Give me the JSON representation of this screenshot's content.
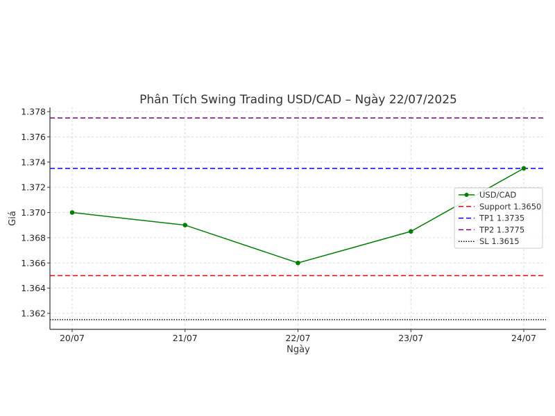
{
  "chart_data": {
    "type": "line",
    "title": "Phân Tích Swing Trading USD/CAD – Ngày 22/07/2025",
    "xlabel": "Ngày",
    "ylabel": "Giá",
    "categories": [
      "20/07",
      "21/07",
      "22/07",
      "23/07",
      "24/07"
    ],
    "series": [
      {
        "name": "USD/CAD",
        "values": [
          1.37,
          1.369,
          1.366,
          1.3685,
          1.3735
        ],
        "color": "#008000",
        "style": "solid",
        "marker": "circle"
      }
    ],
    "reference_lines": [
      {
        "name": "Support 1.3650",
        "value": 1.365,
        "color": "#ff0000",
        "style": "dashed"
      },
      {
        "name": "TP1 1.3735",
        "value": 1.3735,
        "color": "#0000ff",
        "style": "dashed"
      },
      {
        "name": "TP2 1.3775",
        "value": 1.3775,
        "color": "#800080",
        "style": "dashed"
      },
      {
        "name": "SL 1.3615",
        "value": 1.3615,
        "color": "#000000",
        "style": "dotted"
      }
    ],
    "yticks": [
      "1.362",
      "1.364",
      "1.366",
      "1.368",
      "1.370",
      "1.372",
      "1.374",
      "1.376",
      "1.378"
    ],
    "ylim": [
      1.3608,
      1.3782
    ],
    "grid": true,
    "legend_position": "center right"
  }
}
